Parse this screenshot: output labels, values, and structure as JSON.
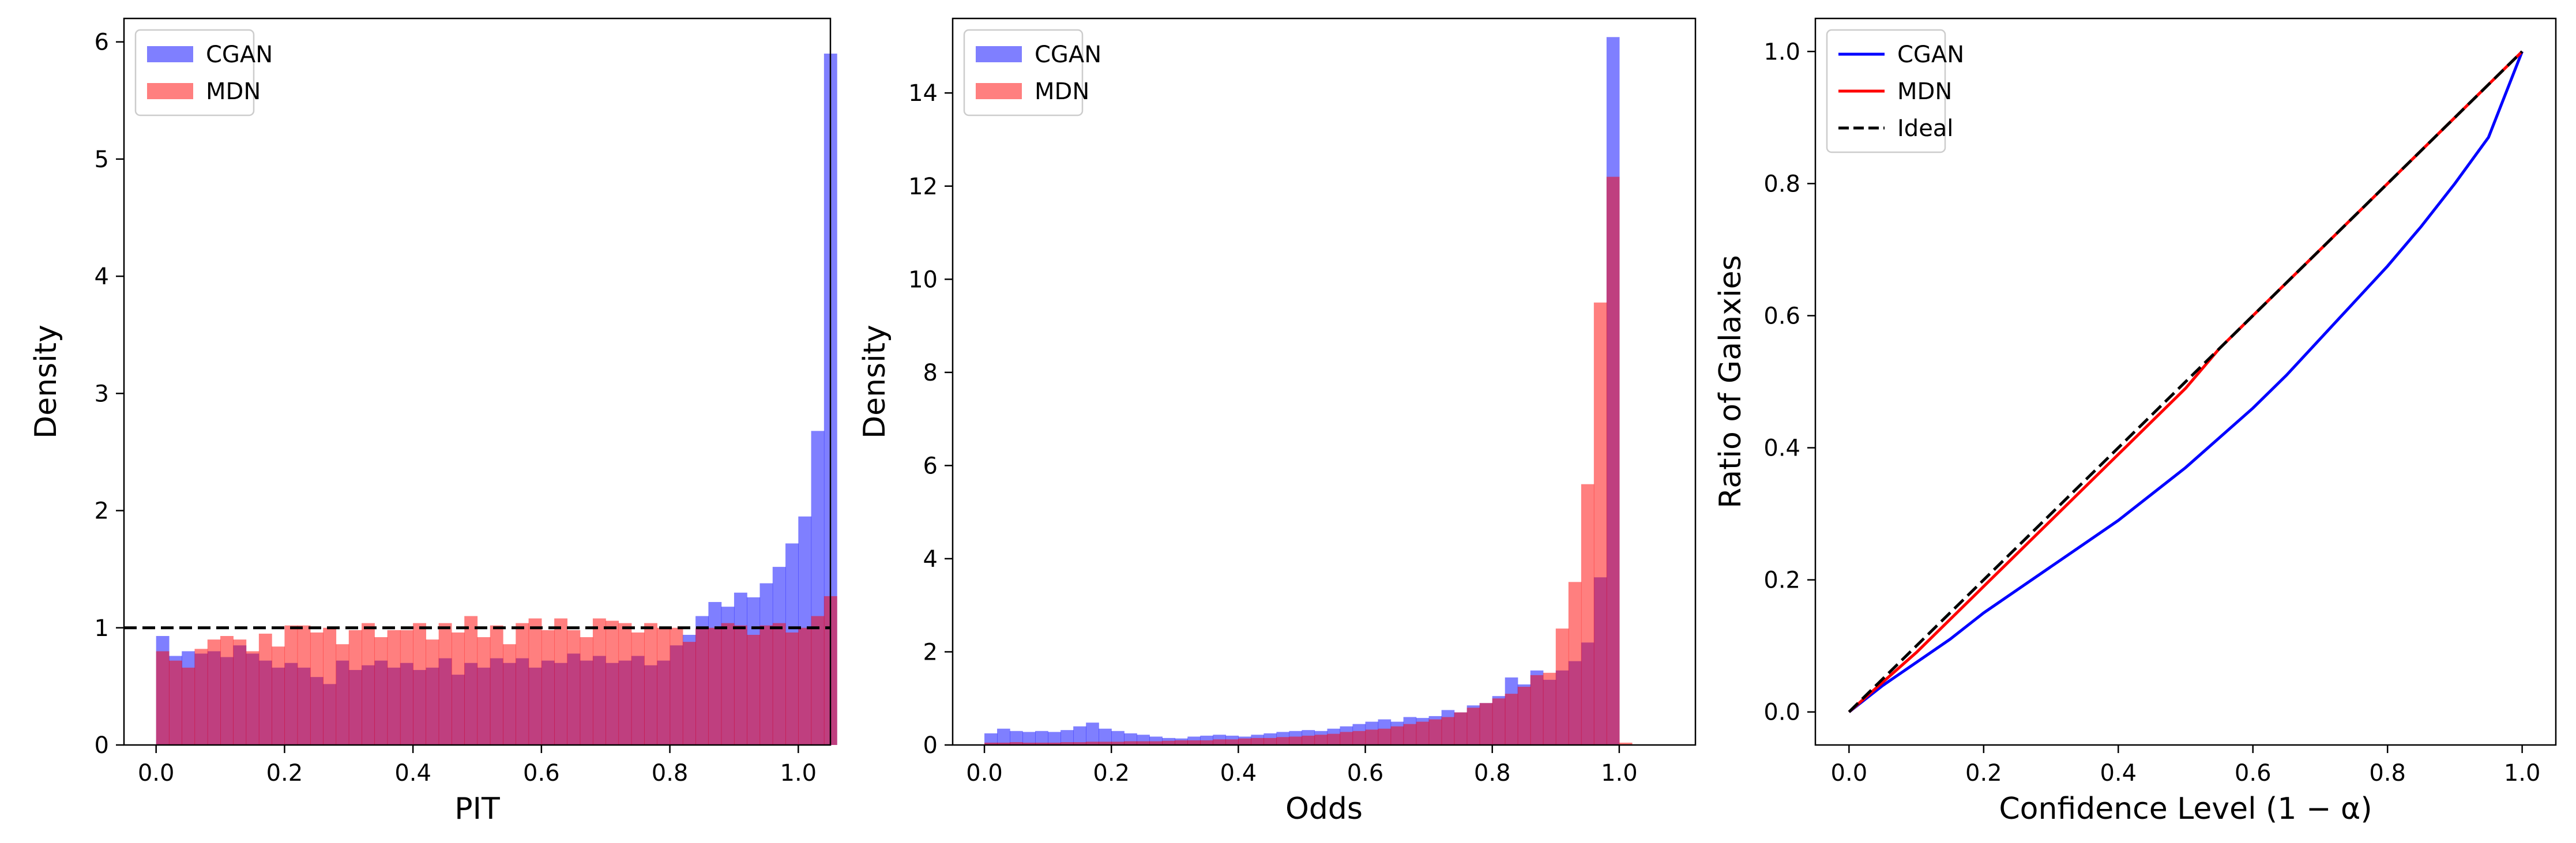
{
  "colors": {
    "cgan": "#0000ff",
    "mdn": "#ff0000",
    "ideal": "#000000",
    "overlap": "#c03b7e"
  },
  "chart_data": [
    {
      "type": "bar",
      "subtype": "histogram",
      "xlabel": "PIT",
      "ylabel": "Density",
      "xlim": [
        -0.05,
        1.05
      ],
      "ylim": [
        0,
        6.2
      ],
      "xticks": [
        "0.0",
        "0.2",
        "0.4",
        "0.6",
        "0.8",
        "1.0"
      ],
      "yticks": [
        "0",
        "1",
        "2",
        "3",
        "4",
        "5",
        "6"
      ],
      "bin_start": 0.0,
      "bin_width": 0.02,
      "legend": {
        "position": "upper-left",
        "entries": [
          "CGAN",
          "MDN"
        ]
      },
      "reference_line": {
        "y": 1,
        "style": "dashed"
      },
      "series": [
        {
          "name": "CGAN",
          "values": [
            0.93,
            0.76,
            0.8,
            0.78,
            0.8,
            0.75,
            0.85,
            0.78,
            0.72,
            0.66,
            0.7,
            0.66,
            0.58,
            0.52,
            0.72,
            0.64,
            0.68,
            0.72,
            0.66,
            0.7,
            0.64,
            0.66,
            0.74,
            0.6,
            0.7,
            0.66,
            0.74,
            0.7,
            0.74,
            0.66,
            0.72,
            0.7,
            0.78,
            0.72,
            0.76,
            0.7,
            0.72,
            0.76,
            0.68,
            0.72,
            0.85,
            0.94,
            1.1,
            1.22,
            1.18,
            1.3,
            1.26,
            1.38,
            1.52,
            1.72,
            1.95,
            2.68,
            5.9
          ]
        },
        {
          "name": "MDN",
          "values": [
            0.8,
            0.72,
            0.66,
            0.82,
            0.9,
            0.93,
            0.9,
            0.8,
            0.95,
            0.84,
            1.02,
            1.02,
            0.96,
            1.0,
            0.86,
            0.98,
            1.04,
            0.92,
            0.98,
            0.98,
            1.04,
            0.9,
            1.04,
            0.96,
            1.1,
            0.92,
            1.02,
            0.86,
            1.04,
            1.08,
            0.98,
            1.08,
            0.98,
            0.92,
            1.08,
            1.06,
            1.04,
            0.96,
            1.04,
            1.0,
            1.0,
            0.88,
            1.0,
            1.0,
            1.04,
            1.02,
            0.94,
            1.02,
            1.04,
            0.96,
            1.0,
            1.1,
            1.27
          ]
        }
      ]
    },
    {
      "type": "bar",
      "subtype": "histogram",
      "xlabel": "Odds",
      "ylabel": "Density",
      "xlim": [
        -0.05,
        1.12
      ],
      "ylim": [
        0,
        15.6
      ],
      "xticks": [
        "0.0",
        "0.2",
        "0.4",
        "0.6",
        "0.8",
        "1.0"
      ],
      "yticks": [
        "0",
        "2",
        "4",
        "6",
        "8",
        "10",
        "12",
        "14"
      ],
      "bin_start": 0.0,
      "bin_width": 0.02,
      "legend": {
        "position": "upper-left",
        "entries": [
          "CGAN",
          "MDN"
        ]
      },
      "series": [
        {
          "name": "CGAN",
          "values": [
            0.25,
            0.35,
            0.3,
            0.28,
            0.3,
            0.28,
            0.32,
            0.4,
            0.48,
            0.35,
            0.3,
            0.25,
            0.22,
            0.18,
            0.15,
            0.14,
            0.18,
            0.2,
            0.22,
            0.2,
            0.18,
            0.22,
            0.25,
            0.28,
            0.3,
            0.32,
            0.3,
            0.35,
            0.4,
            0.45,
            0.5,
            0.55,
            0.5,
            0.6,
            0.58,
            0.62,
            0.75,
            0.7,
            0.85,
            0.9,
            1.05,
            1.45,
            1.3,
            1.6,
            1.4,
            1.6,
            1.8,
            2.2,
            3.6,
            15.2
          ]
        },
        {
          "name": "MDN",
          "values": [
            0.05,
            0.05,
            0.06,
            0.05,
            0.05,
            0.05,
            0.06,
            0.06,
            0.07,
            0.07,
            0.07,
            0.08,
            0.08,
            0.08,
            0.09,
            0.1,
            0.1,
            0.1,
            0.12,
            0.12,
            0.14,
            0.15,
            0.15,
            0.17,
            0.18,
            0.2,
            0.22,
            0.24,
            0.28,
            0.3,
            0.33,
            0.35,
            0.4,
            0.45,
            0.5,
            0.55,
            0.6,
            0.7,
            0.8,
            0.9,
            1.0,
            1.1,
            1.25,
            1.5,
            1.55,
            2.5,
            3.5,
            5.6,
            9.5,
            12.2,
            0.05
          ]
        }
      ]
    },
    {
      "type": "line",
      "xlabel": "Confidence Level (1 − α)",
      "ylabel": "Ratio of Galaxies",
      "xlim": [
        -0.05,
        1.05
      ],
      "ylim": [
        -0.05,
        1.05
      ],
      "xticks": [
        "0.0",
        "0.2",
        "0.4",
        "0.6",
        "0.8",
        "1.0"
      ],
      "yticks": [
        "0.0",
        "0.2",
        "0.4",
        "0.6",
        "0.8",
        "1.0"
      ],
      "legend": {
        "position": "upper-left",
        "entries": [
          "CGAN",
          "MDN",
          "Ideal"
        ]
      },
      "series": [
        {
          "name": "CGAN",
          "x": [
            0,
            0.05,
            0.1,
            0.15,
            0.2,
            0.25,
            0.3,
            0.35,
            0.4,
            0.45,
            0.5,
            0.55,
            0.6,
            0.65,
            0.7,
            0.75,
            0.8,
            0.85,
            0.9,
            0.95,
            1.0
          ],
          "y": [
            0,
            0.04,
            0.075,
            0.11,
            0.15,
            0.185,
            0.22,
            0.255,
            0.29,
            0.33,
            0.37,
            0.415,
            0.46,
            0.51,
            0.565,
            0.62,
            0.675,
            0.735,
            0.8,
            0.87,
            1.0
          ]
        },
        {
          "name": "MDN",
          "x": [
            0,
            0.1,
            0.2,
            0.3,
            0.4,
            0.5,
            0.55,
            0.6,
            0.7,
            0.8,
            0.9,
            1.0
          ],
          "y": [
            0,
            0.09,
            0.19,
            0.29,
            0.39,
            0.49,
            0.55,
            0.6,
            0.7,
            0.8,
            0.9,
            1.0
          ]
        },
        {
          "name": "Ideal",
          "x": [
            0,
            1
          ],
          "y": [
            0,
            1
          ]
        }
      ]
    }
  ]
}
